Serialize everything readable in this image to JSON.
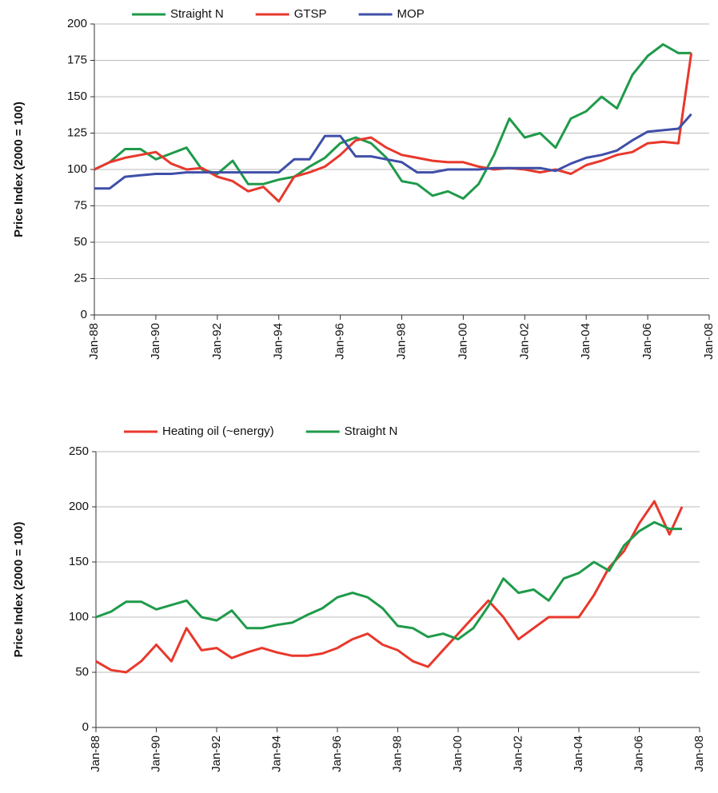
{
  "chart_data": [
    {
      "type": "line",
      "y_label": "Price Index (2000 = 100)",
      "legend": "top",
      "grid": true,
      "x": [
        "1988-01",
        "1988-07",
        "1989-01",
        "1989-07",
        "1990-01",
        "1990-07",
        "1991-01",
        "1991-07",
        "1992-01",
        "1992-07",
        "1993-01",
        "1993-07",
        "1994-01",
        "1994-07",
        "1995-01",
        "1995-07",
        "1996-01",
        "1996-07",
        "1997-01",
        "1997-07",
        "1998-01",
        "1998-07",
        "1999-01",
        "1999-07",
        "2000-01",
        "2000-07",
        "2001-01",
        "2001-07",
        "2002-01",
        "2002-07",
        "2003-01",
        "2003-07",
        "2004-01",
        "2004-07",
        "2005-01",
        "2005-07",
        "2006-01",
        "2006-07",
        "2007-01",
        "2007-06"
      ],
      "xlim": [
        "1988-01",
        "2008-01"
      ],
      "xticks": [
        {
          "value": "1988-01",
          "label": "Jan-88"
        },
        {
          "value": "1990-01",
          "label": "Jan-90"
        },
        {
          "value": "1992-01",
          "label": "Jan-92"
        },
        {
          "value": "1994-01",
          "label": "Jan-94"
        },
        {
          "value": "1996-01",
          "label": "Jan-96"
        },
        {
          "value": "1998-01",
          "label": "Jan-98"
        },
        {
          "value": "2000-01",
          "label": "Jan-00"
        },
        {
          "value": "2002-01",
          "label": "Jan-02"
        },
        {
          "value": "2004-01",
          "label": "Jan-04"
        },
        {
          "value": "2006-01",
          "label": "Jan-06"
        },
        {
          "value": "2008-01",
          "label": "Jan-08"
        }
      ],
      "ylim": [
        0,
        200
      ],
      "yticks": [
        0,
        25,
        50,
        75,
        100,
        125,
        150,
        175,
        200
      ],
      "series": [
        {
          "name": "Straight N",
          "color": "#1f9a4a",
          "values": [
            100,
            105,
            114,
            114,
            107,
            111,
            115,
            100,
            97,
            106,
            90,
            90,
            93,
            95,
            102,
            108,
            118,
            122,
            118,
            108,
            92,
            90,
            82,
            85,
            80,
            90,
            110,
            135,
            122,
            125,
            115,
            135,
            140,
            150,
            142,
            165,
            178,
            186,
            180,
            180
          ]
        },
        {
          "name": "GTSP",
          "color": "#e8382c",
          "values": [
            100,
            105,
            108,
            110,
            112,
            104,
            100,
            101,
            95,
            92,
            85,
            88,
            78,
            95,
            98,
            102,
            110,
            120,
            122,
            115,
            110,
            108,
            106,
            105,
            105,
            102,
            100,
            101,
            100,
            98,
            100,
            97,
            103,
            106,
            110,
            112,
            118,
            119,
            118,
            180
          ]
        },
        {
          "name": "MOP",
          "color": "#3f4fa8",
          "values": [
            87,
            87,
            95,
            96,
            97,
            97,
            98,
            98,
            98,
            98,
            98,
            98,
            98,
            107,
            107,
            123,
            123,
            109,
            109,
            107,
            105,
            98,
            98,
            100,
            100,
            100,
            101,
            101,
            101,
            101,
            99,
            104,
            108,
            110,
            113,
            120,
            126,
            127,
            128,
            138
          ]
        }
      ]
    },
    {
      "type": "line",
      "y_label": "Price Index (2000 = 100)",
      "legend": "top",
      "grid": true,
      "x": [
        "1988-01",
        "1988-07",
        "1989-01",
        "1989-07",
        "1990-01",
        "1990-07",
        "1991-01",
        "1991-07",
        "1992-01",
        "1992-07",
        "1993-01",
        "1993-07",
        "1994-01",
        "1994-07",
        "1995-01",
        "1995-07",
        "1996-01",
        "1996-07",
        "1997-01",
        "1997-07",
        "1998-01",
        "1998-07",
        "1999-01",
        "1999-07",
        "2000-01",
        "2000-07",
        "2001-01",
        "2001-07",
        "2002-01",
        "2002-07",
        "2003-01",
        "2003-07",
        "2004-01",
        "2004-07",
        "2005-01",
        "2005-07",
        "2006-01",
        "2006-07",
        "2007-01",
        "2007-06"
      ],
      "xlim": [
        "1988-01",
        "2008-01"
      ],
      "xticks": [
        {
          "value": "1988-01",
          "label": "Jan-88"
        },
        {
          "value": "1990-01",
          "label": "Jan-90"
        },
        {
          "value": "1992-01",
          "label": "Jan-92"
        },
        {
          "value": "1994-01",
          "label": "Jan-94"
        },
        {
          "value": "1996-01",
          "label": "Jan-96"
        },
        {
          "value": "1998-01",
          "label": "Jan-98"
        },
        {
          "value": "2000-01",
          "label": "Jan-00"
        },
        {
          "value": "2002-01",
          "label": "Jan-02"
        },
        {
          "value": "2004-01",
          "label": "Jan-04"
        },
        {
          "value": "2006-01",
          "label": "Jan-06"
        },
        {
          "value": "2008-01",
          "label": "Jan-08"
        }
      ],
      "ylim": [
        0,
        250
      ],
      "yticks": [
        0,
        50,
        100,
        150,
        200,
        250
      ],
      "series": [
        {
          "name": "Heating oil (~energy)",
          "color": "#e8382c",
          "values": [
            60,
            52,
            50,
            60,
            75,
            60,
            90,
            70,
            72,
            63,
            68,
            72,
            68,
            65,
            65,
            67,
            72,
            80,
            85,
            75,
            70,
            60,
            55,
            70,
            85,
            100,
            115,
            100,
            80,
            90,
            100,
            100,
            100,
            120,
            145,
            160,
            185,
            205,
            175,
            200
          ]
        },
        {
          "name": "Straight N",
          "color": "#1f9a4a",
          "values": [
            100,
            105,
            114,
            114,
            107,
            111,
            115,
            100,
            97,
            106,
            90,
            90,
            93,
            95,
            102,
            108,
            118,
            122,
            118,
            108,
            92,
            90,
            82,
            85,
            80,
            90,
            110,
            135,
            122,
            125,
            115,
            135,
            140,
            150,
            142,
            165,
            178,
            186,
            180,
            180
          ]
        }
      ]
    }
  ]
}
